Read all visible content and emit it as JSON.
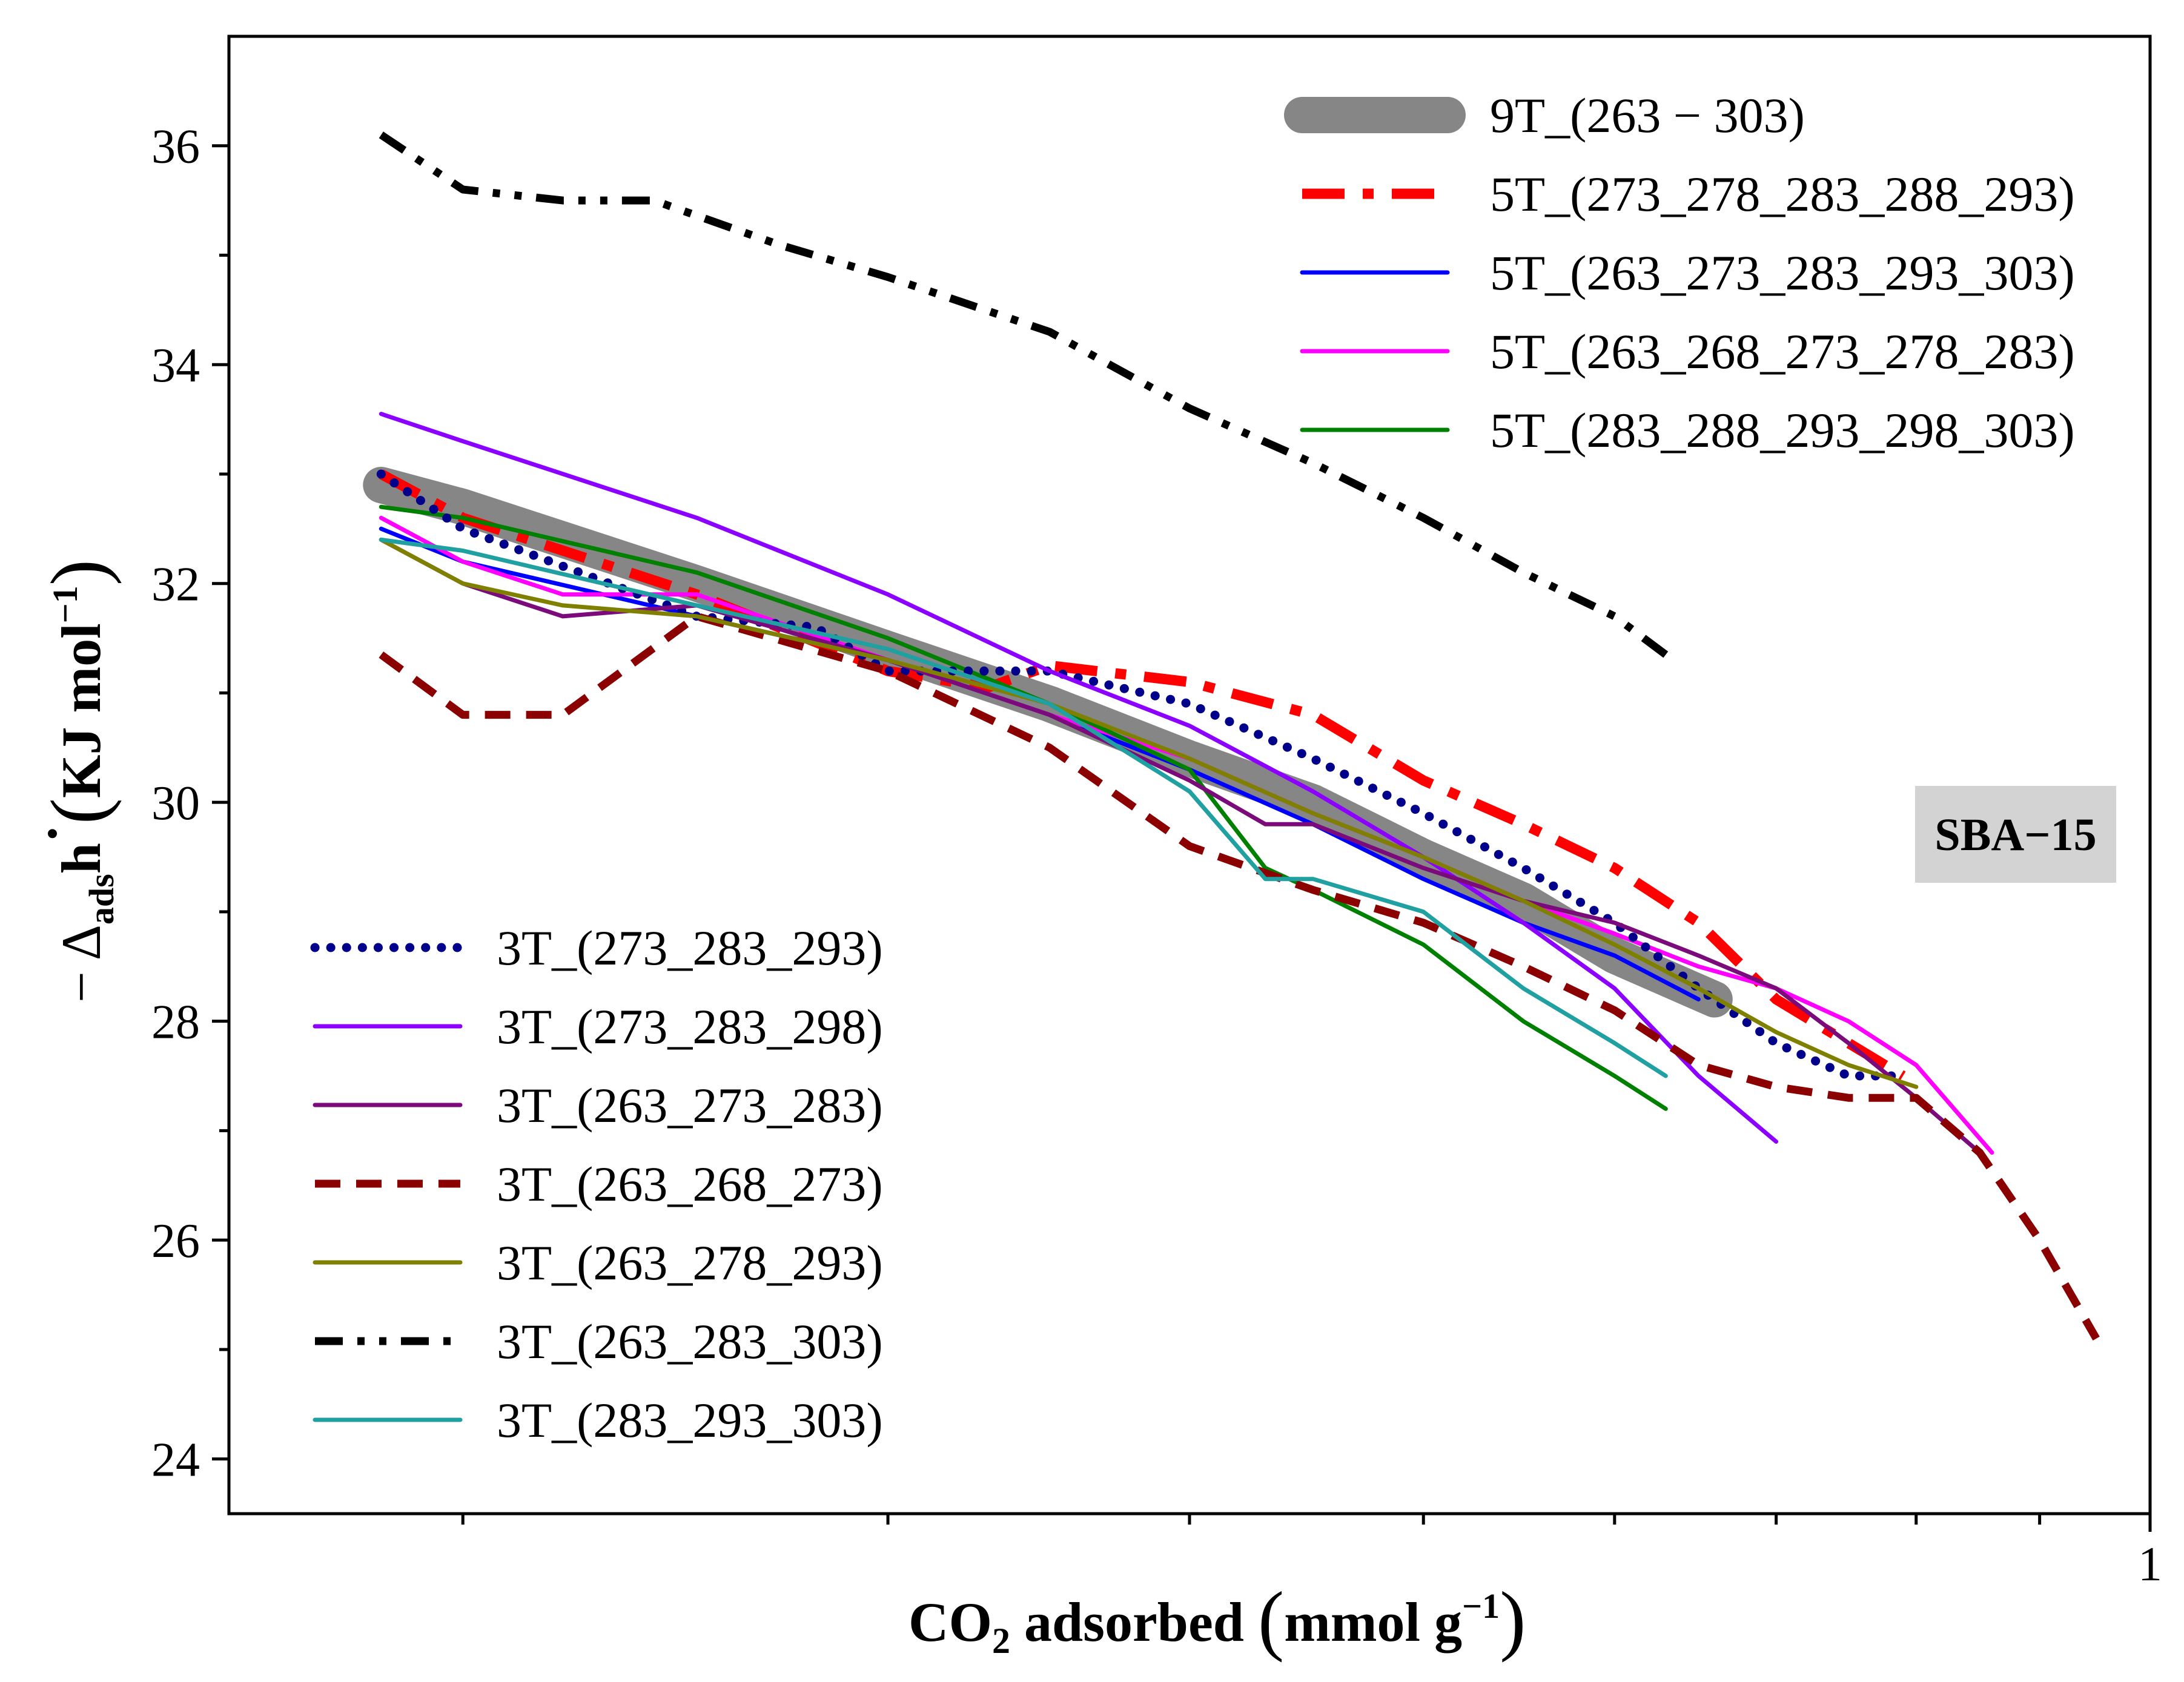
{
  "chart_data": {
    "type": "line",
    "title": "",
    "xlabel": {
      "main": "CO",
      "sub": "2",
      "rest": " adsorbed ",
      "unit": "mmol g",
      "unit_sup": "−1"
    },
    "ylabel": {
      "prefix": "− Δ",
      "sub": "ads",
      "h": "h",
      "dot": "·",
      "unit": "KJ mol",
      "unit_sup": "−1"
    },
    "x_scale": "log",
    "xlim": [
      0.16,
      1.0
    ],
    "ylim": [
      23.5,
      37.0
    ],
    "x_tick_label": "1",
    "x_ticks_minor": [
      0.2,
      0.3,
      0.4,
      0.5,
      0.6,
      0.7,
      0.8,
      0.9,
      1.0
    ],
    "y_ticks_major": [
      24,
      26,
      28,
      30,
      32,
      34,
      36
    ],
    "y_tick_labels": [
      "24",
      "26",
      "28",
      "30",
      "32",
      "34",
      "36"
    ],
    "y_ticks_minor": [
      25,
      27,
      29,
      31,
      33,
      35
    ],
    "annotation": {
      "text": "SBA−15",
      "bg": "#d3d3d3"
    },
    "series": [
      {
        "name": "9T_(263 − 303)",
        "color": "#808080",
        "style": "thick",
        "x": [
          0.185,
          0.2,
          0.25,
          0.3,
          0.35,
          0.4,
          0.45,
          0.5,
          0.55,
          0.6,
          0.66
        ],
        "y": [
          32.9,
          32.7,
          32.0,
          31.4,
          30.9,
          30.4,
          30.0,
          29.5,
          29.1,
          28.6,
          28.2
        ]
      },
      {
        "name": "5T_(273_278_283_288_293)",
        "color": "#ff0000",
        "style": "dashdot-bold",
        "x": [
          0.185,
          0.2,
          0.25,
          0.3,
          0.33,
          0.35,
          0.4,
          0.45,
          0.5,
          0.55,
          0.6,
          0.65,
          0.7,
          0.75,
          0.79
        ],
        "y": [
          33.0,
          32.6,
          31.9,
          31.2,
          31.05,
          31.25,
          31.1,
          30.8,
          30.2,
          29.8,
          29.4,
          28.9,
          28.2,
          27.8,
          27.5
        ]
      },
      {
        "name": "5T_(263_273_283_293_303)",
        "color": "#0000ff",
        "style": "solid",
        "x": [
          0.185,
          0.2,
          0.25,
          0.3,
          0.35,
          0.4,
          0.45,
          0.5,
          0.55,
          0.6,
          0.65
        ],
        "y": [
          32.5,
          32.2,
          31.7,
          31.3,
          30.8,
          30.3,
          29.8,
          29.3,
          28.9,
          28.6,
          28.2
        ]
      },
      {
        "name": "5T_(263_268_273_278_283)",
        "color": "#ff00ff",
        "style": "solid",
        "x": [
          0.185,
          0.2,
          0.22,
          0.25,
          0.3,
          0.35,
          0.4,
          0.45,
          0.5,
          0.55,
          0.6,
          0.65,
          0.7,
          0.75,
          0.8,
          0.86
        ],
        "y": [
          32.6,
          32.2,
          31.9,
          31.9,
          31.3,
          30.8,
          30.4,
          29.9,
          29.5,
          29.1,
          28.8,
          28.5,
          28.3,
          28.0,
          27.6,
          26.8
        ]
      },
      {
        "name": "5T_(283_288_293_298_303)",
        "color": "#008000",
        "style": "solid",
        "x": [
          0.185,
          0.2,
          0.25,
          0.3,
          0.35,
          0.4,
          0.43,
          0.45,
          0.5,
          0.55,
          0.6,
          0.63
        ],
        "y": [
          32.7,
          32.6,
          32.1,
          31.5,
          30.9,
          30.3,
          29.4,
          29.2,
          28.7,
          28.0,
          27.5,
          27.2
        ]
      },
      {
        "name": "3T_(273_283_293)",
        "color": "#00008b",
        "style": "dotted",
        "x": [
          0.185,
          0.2,
          0.25,
          0.28,
          0.3,
          0.33,
          0.35,
          0.4,
          0.45,
          0.5,
          0.55,
          0.6,
          0.65,
          0.7,
          0.75,
          0.79
        ],
        "y": [
          33.0,
          32.5,
          31.7,
          31.6,
          31.2,
          31.2,
          31.2,
          30.9,
          30.4,
          29.9,
          29.4,
          28.9,
          28.3,
          27.8,
          27.5,
          27.5
        ]
      },
      {
        "name": "3T_(273_283_298)",
        "color": "#8b00ff",
        "style": "solid",
        "x": [
          0.185,
          0.2,
          0.25,
          0.3,
          0.35,
          0.4,
          0.45,
          0.5,
          0.55,
          0.6,
          0.65,
          0.7
        ],
        "y": [
          33.55,
          33.3,
          32.6,
          31.9,
          31.2,
          30.7,
          30.1,
          29.5,
          28.9,
          28.3,
          27.5,
          26.9
        ]
      },
      {
        "name": "3T_(263_273_283)",
        "color": "#7b0a7b",
        "style": "solid",
        "x": [
          0.185,
          0.2,
          0.22,
          0.25,
          0.3,
          0.35,
          0.4,
          0.43,
          0.45,
          0.5,
          0.55,
          0.6,
          0.65,
          0.7,
          0.75,
          0.8,
          0.85
        ],
        "y": [
          32.4,
          32.0,
          31.7,
          31.8,
          31.3,
          30.8,
          30.2,
          29.8,
          29.8,
          29.4,
          29.1,
          28.9,
          28.6,
          28.3,
          27.8,
          27.3,
          26.8
        ]
      },
      {
        "name": "3T_(263_268_273)",
        "color": "#8b0000",
        "style": "dashed",
        "x": [
          0.185,
          0.2,
          0.22,
          0.25,
          0.3,
          0.35,
          0.4,
          0.45,
          0.5,
          0.55,
          0.6,
          0.65,
          0.7,
          0.75,
          0.8,
          0.85,
          0.9,
          0.95
        ],
        "y": [
          31.35,
          30.8,
          30.8,
          31.7,
          31.2,
          30.5,
          29.6,
          29.2,
          28.9,
          28.5,
          28.1,
          27.6,
          27.4,
          27.3,
          27.3,
          26.8,
          26.0,
          25.1
        ]
      },
      {
        "name": "3T_(263_278_293)",
        "color": "#808000",
        "style": "solid",
        "x": [
          0.185,
          0.2,
          0.22,
          0.25,
          0.3,
          0.35,
          0.4,
          0.45,
          0.5,
          0.55,
          0.6,
          0.65,
          0.7,
          0.75,
          0.8
        ],
        "y": [
          32.4,
          32.0,
          31.8,
          31.7,
          31.3,
          30.9,
          30.4,
          29.9,
          29.5,
          29.1,
          28.7,
          28.3,
          27.9,
          27.6,
          27.4
        ]
      },
      {
        "name": "3T_(263_283_303)",
        "color": "#000000",
        "style": "dashdotdot",
        "x": [
          0.185,
          0.2,
          0.22,
          0.24,
          0.27,
          0.3,
          0.35,
          0.4,
          0.45,
          0.5,
          0.55,
          0.6,
          0.63
        ],
        "y": [
          36.1,
          35.6,
          35.5,
          35.5,
          35.1,
          34.8,
          34.3,
          33.6,
          33.1,
          32.6,
          32.1,
          31.7,
          31.35
        ]
      },
      {
        "name": "3T_(283_293_303)",
        "color": "#20a0a0",
        "style": "solid",
        "x": [
          0.185,
          0.2,
          0.25,
          0.3,
          0.35,
          0.4,
          0.43,
          0.45,
          0.5,
          0.55,
          0.6,
          0.63
        ],
        "y": [
          32.4,
          32.3,
          31.8,
          31.4,
          30.9,
          30.1,
          29.3,
          29.3,
          29.0,
          28.3,
          27.8,
          27.5
        ]
      }
    ],
    "legend_top": [
      0,
      1,
      2,
      3,
      4
    ],
    "legend_bottom": [
      5,
      6,
      7,
      8,
      9,
      10,
      11
    ]
  }
}
